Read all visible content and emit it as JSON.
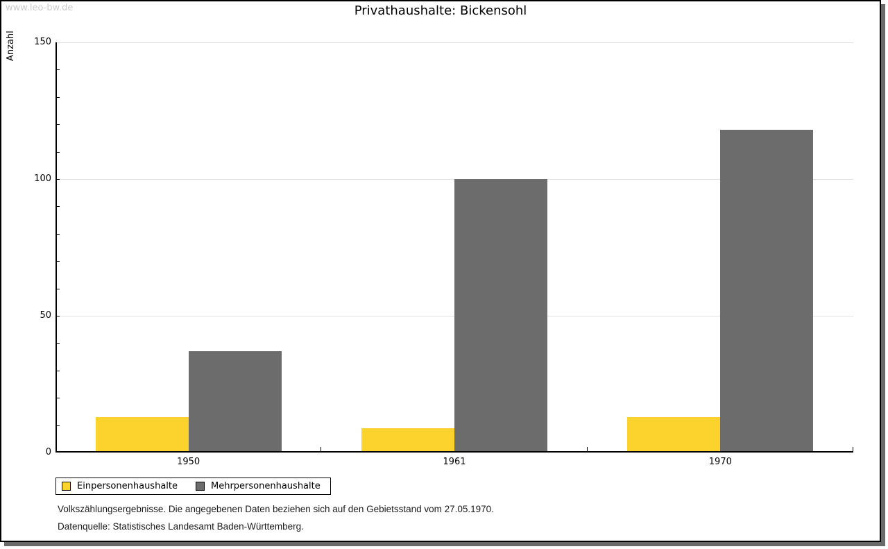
{
  "watermark": "www.leo-bw.de",
  "title": "Privathaushalte: Bickensohl",
  "chart_data": {
    "type": "bar",
    "title": "Privathaushalte: Bickensohl",
    "xlabel": "",
    "ylabel": "Anzahl",
    "categories": [
      "1950",
      "1961",
      "1970"
    ],
    "series": [
      {
        "name": "Einpersonenhaushalte",
        "color": "#FCD32D",
        "values": [
          13,
          9,
          13
        ]
      },
      {
        "name": "Mehrpersonenhaushalte",
        "color": "#6C6C6C",
        "values": [
          37,
          100,
          118
        ]
      }
    ],
    "ylim": [
      0,
      150
    ],
    "ytick_interval": 50,
    "yminor_interval": 10,
    "grid": true,
    "legend_position": "bottom-left"
  },
  "footnotes": {
    "line1": "Volkszählungsergebnisse. Die angegebenen Daten beziehen sich auf den Gebietsstand vom 27.05.1970.",
    "line2": "Datenquelle: Statistisches Landesamt Baden-Württemberg."
  },
  "colors": {
    "series1": "#FCD32D",
    "series2": "#6C6C6C",
    "gridline": "#e2e2e2",
    "watermark": "#cccccc",
    "frame_border": "#000000",
    "frame_shadow": "#6a6a6a"
  }
}
